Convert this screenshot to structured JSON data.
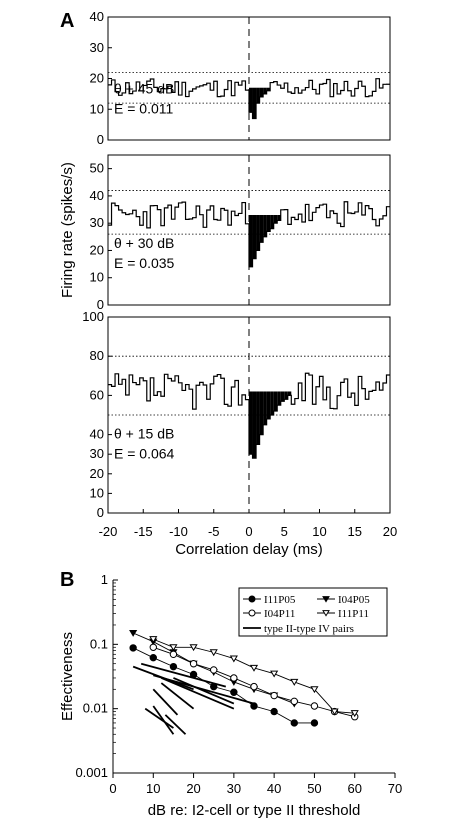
{
  "figure": {
    "panel_a_label": "A",
    "panel_b_label": "B"
  },
  "chart_data": [
    {
      "type": "histogram-step",
      "panel": "A",
      "xlabel": "Correlation delay (ms)",
      "ylabel": "Firing rate (spikes/s)",
      "xlim": [
        -20,
        20
      ],
      "xticks": [
        "-20",
        "-15",
        "-10",
        "-5",
        "0",
        "5",
        "10",
        "15",
        "20"
      ],
      "vline_x": 0,
      "subplots": [
        {
          "annotation_1": "θ + 45 dB",
          "annotation_2": "E = 0.011",
          "baseline": 17,
          "band": [
            12,
            22
          ],
          "ylim": [
            0,
            40
          ],
          "yticks": [
            "0",
            "10",
            "20",
            "30",
            "40"
          ],
          "y_tick_values": [
            0,
            10,
            20,
            30,
            40
          ],
          "dip": [
            9,
            7,
            12,
            14,
            15,
            16
          ],
          "seed": 11
        },
        {
          "annotation_1": "θ + 30 dB",
          "annotation_2": "E = 0.035",
          "baseline": 33,
          "band": [
            26,
            42
          ],
          "ylim": [
            0,
            55
          ],
          "yticks": [
            "0",
            "10",
            "20",
            "30",
            "40",
            "50"
          ],
          "y_tick_values": [
            0,
            10,
            20,
            30,
            40,
            50
          ],
          "dip": [
            14,
            17,
            20,
            23,
            25,
            27,
            28,
            30,
            31
          ],
          "seed": 23
        },
        {
          "annotation_1": "θ + 15 dB",
          "annotation_2": "E = 0.064",
          "baseline": 62,
          "band": [
            50,
            80
          ],
          "ylim": [
            0,
            100
          ],
          "yticks": [
            "0",
            "10",
            "20",
            "30",
            "40",
            "60",
            "80",
            "100"
          ],
          "y_tick_values": [
            0,
            10,
            20,
            30,
            40,
            60,
            80,
            100
          ],
          "dip": [
            30,
            28,
            35,
            40,
            45,
            48,
            50,
            52,
            55,
            57,
            58,
            60
          ],
          "seed": 37
        }
      ]
    },
    {
      "type": "line",
      "panel": "B",
      "xlabel": "dB re: I2-cell or type II threshold",
      "ylabel": "Effectiveness",
      "xlim": [
        0,
        70
      ],
      "ylim": [
        0.001,
        1
      ],
      "yscale": "log",
      "xticks": [
        "0",
        "10",
        "20",
        "30",
        "40",
        "50",
        "60",
        "70"
      ],
      "yticks": [
        "0.001",
        "0.01",
        "0.1",
        "1"
      ],
      "legend_position": "top-right",
      "series": [
        {
          "name": "I11P05",
          "marker": "filled-circle",
          "x": [
            5,
            10,
            15,
            20,
            25,
            30,
            35,
            40,
            45,
            50
          ],
          "y": [
            0.088,
            0.062,
            0.045,
            0.034,
            0.022,
            0.018,
            0.011,
            0.009,
            0.006,
            0.006
          ]
        },
        {
          "name": "I04P05",
          "marker": "filled-triangle-down",
          "x": [
            5,
            10,
            15,
            20,
            25,
            30,
            35,
            40,
            45
          ],
          "y": [
            0.15,
            0.11,
            0.075,
            0.05,
            0.037,
            0.026,
            0.02,
            0.016,
            0.012
          ]
        },
        {
          "name": "I04P11",
          "marker": "open-circle",
          "x": [
            10,
            15,
            20,
            25,
            30,
            35,
            40,
            45,
            50,
            55,
            60
          ],
          "y": [
            0.09,
            0.07,
            0.05,
            0.04,
            0.03,
            0.022,
            0.016,
            0.013,
            0.011,
            0.009,
            0.0075
          ]
        },
        {
          "name": "I11P11",
          "marker": "open-triangle-down",
          "x": [
            10,
            15,
            20,
            25,
            30,
            35,
            40,
            45,
            50,
            55,
            60
          ],
          "y": [
            0.12,
            0.09,
            0.09,
            0.075,
            0.06,
            0.043,
            0.035,
            0.026,
            0.02,
            0.009,
            0.0085
          ]
        },
        {
          "name": "type II-type IV pairs",
          "marker": "none"
        }
      ],
      "pair_lines": [
        {
          "x": [
            5,
            20
          ],
          "y": [
            0.045,
            0.02
          ]
        },
        {
          "x": [
            7,
            28
          ],
          "y": [
            0.05,
            0.022
          ]
        },
        {
          "x": [
            10,
            35
          ],
          "y": [
            0.033,
            0.012
          ]
        },
        {
          "x": [
            12,
            30
          ],
          "y": [
            0.03,
            0.01
          ]
        },
        {
          "x": [
            15,
            30
          ],
          "y": [
            0.03,
            0.012
          ]
        },
        {
          "x": [
            10,
            16
          ],
          "y": [
            0.02,
            0.008
          ]
        },
        {
          "x": [
            12,
            20
          ],
          "y": [
            0.025,
            0.01
          ]
        },
        {
          "x": [
            8,
            15
          ],
          "y": [
            0.01,
            0.005
          ]
        },
        {
          "x": [
            10,
            15
          ],
          "y": [
            0.011,
            0.004
          ]
        },
        {
          "x": [
            13,
            18
          ],
          "y": [
            0.008,
            0.004
          ]
        }
      ]
    }
  ]
}
